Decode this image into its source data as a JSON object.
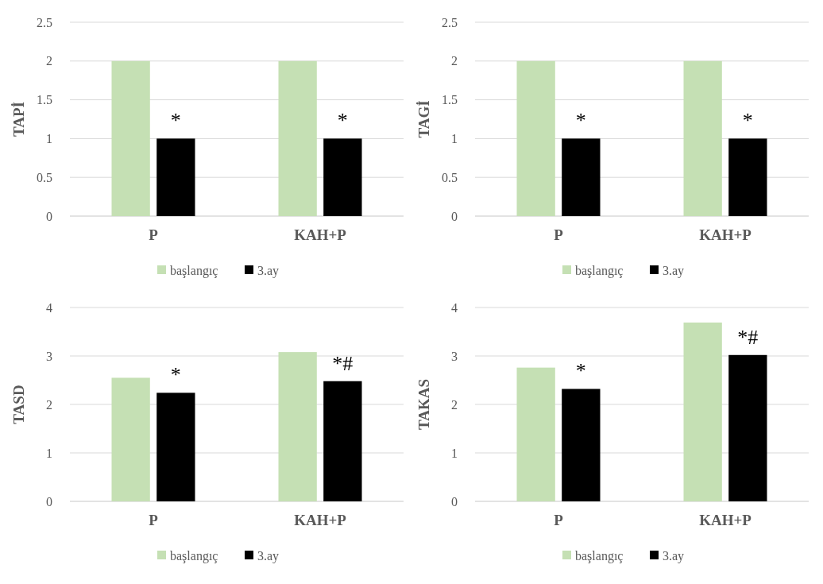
{
  "chart_data": [
    {
      "type": "bar",
      "ylabel": "TAPİ",
      "categories": [
        "P",
        "KAH+P"
      ],
      "series": [
        {
          "name": "başlangıç",
          "color": "#c5e0b4",
          "values": [
            2,
            2
          ]
        },
        {
          "name": "3.ay",
          "color": "#000000",
          "values": [
            1,
            1
          ]
        }
      ],
      "ylim": [
        0,
        2.5
      ],
      "yticks": [
        0,
        0.5,
        1,
        1.5,
        2,
        2.5
      ],
      "grid": "y",
      "legend": "bottom",
      "annotations": [
        {
          "text": "*",
          "x": "P",
          "y": 1
        },
        {
          "text": "*",
          "x": "KAH+P",
          "y": 1
        }
      ]
    },
    {
      "type": "bar",
      "ylabel": "TAGİ",
      "categories": [
        "P",
        "KAH+P"
      ],
      "series": [
        {
          "name": "başlangıç",
          "color": "#c5e0b4",
          "values": [
            2,
            2
          ]
        },
        {
          "name": "3.ay",
          "color": "#000000",
          "values": [
            1,
            1
          ]
        }
      ],
      "ylim": [
        0,
        2.5
      ],
      "yticks": [
        0,
        0.5,
        1,
        1.5,
        2,
        2.5
      ],
      "grid": "y",
      "legend": "bottom",
      "annotations": [
        {
          "text": "*",
          "x": "P",
          "y": 1
        },
        {
          "text": "*",
          "x": "KAH+P",
          "y": 1
        }
      ]
    },
    {
      "type": "bar",
      "ylabel": "TASD",
      "categories": [
        "P",
        "KAH+P"
      ],
      "series": [
        {
          "name": "başlangıç",
          "color": "#c5e0b4",
          "values": [
            2.55,
            3.08
          ]
        },
        {
          "name": "3.ay",
          "color": "#000000",
          "values": [
            2.24,
            2.48
          ]
        }
      ],
      "ylim": [
        0,
        4
      ],
      "yticks": [
        0,
        1,
        2,
        3,
        4
      ],
      "grid": "y",
      "legend": "bottom",
      "annotations": [
        {
          "text": "*",
          "x": "P",
          "y": 2.24
        },
        {
          "text": "*#",
          "x": "KAH+P",
          "y": 2.48
        }
      ]
    },
    {
      "type": "bar",
      "ylabel": "TAKAS",
      "categories": [
        "P",
        "KAH+P"
      ],
      "series": [
        {
          "name": "başlangıç",
          "color": "#c5e0b4",
          "values": [
            2.76,
            3.69
          ]
        },
        {
          "name": "3.ay",
          "color": "#000000",
          "values": [
            2.32,
            3.02
          ]
        }
      ],
      "ylim": [
        0,
        4
      ],
      "yticks": [
        0,
        1,
        2,
        3,
        4
      ],
      "grid": "y",
      "legend": "bottom",
      "annotations": [
        {
          "text": "*",
          "x": "P",
          "y": 2.32
        },
        {
          "text": "*#",
          "x": "KAH+P",
          "y": 3.02
        }
      ]
    }
  ]
}
